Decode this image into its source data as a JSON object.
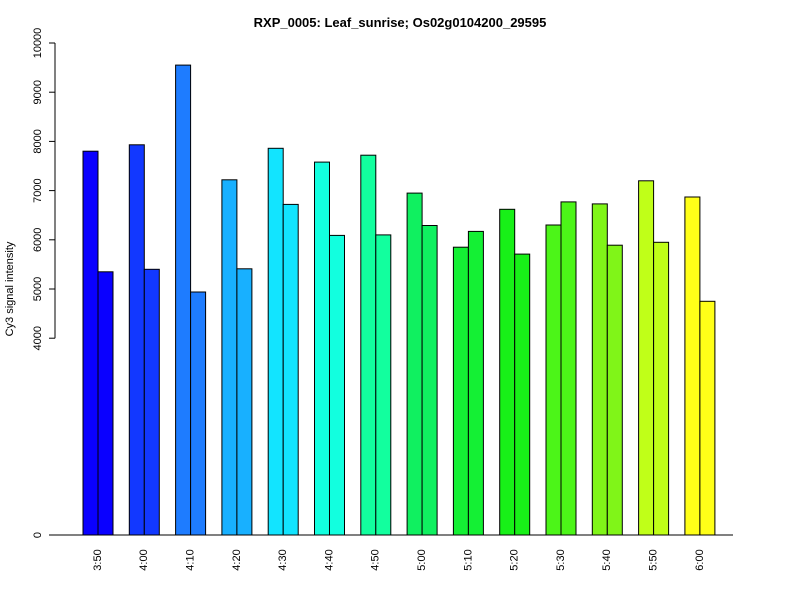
{
  "chart_data": {
    "type": "bar",
    "title": "RXP_0005: Leaf_sunrise; Os02g0104200_29595",
    "xlabel": "",
    "ylabel": "Cy3 signal intensity",
    "ylim": [
      0,
      10000
    ],
    "y_ticks": [
      "0",
      "4000",
      "5000",
      "6000",
      "7000",
      "8000",
      "9000",
      "10000"
    ],
    "categories": [
      "3:50",
      "4:00",
      "4:10",
      "4:20",
      "4:30",
      "4:40",
      "4:50",
      "5:00",
      "5:10",
      "5:20",
      "5:30",
      "5:40",
      "5:50",
      "6:00"
    ],
    "series": [
      {
        "values": [
          7800,
          7930,
          9550,
          7220,
          7860,
          7580,
          7720,
          6950,
          5850,
          6620,
          6300,
          6730,
          7200,
          6870
        ]
      },
      {
        "values": [
          5350,
          5400,
          4940,
          5410,
          6720,
          6090,
          6100,
          6290,
          6170,
          5710,
          6770,
          5890,
          5950,
          4750
        ]
      }
    ],
    "colors": [
      "#0a00ff",
      "#1238ff",
      "#1e7cff",
      "#18b0ff",
      "#12e4ff",
      "#12ffdf",
      "#12ff9e",
      "#10f060",
      "#14f034",
      "#18f018",
      "#4cf518",
      "#80f518",
      "#c0ff18",
      "#ffff18"
    ],
    "grid": false,
    "legend": "none"
  }
}
